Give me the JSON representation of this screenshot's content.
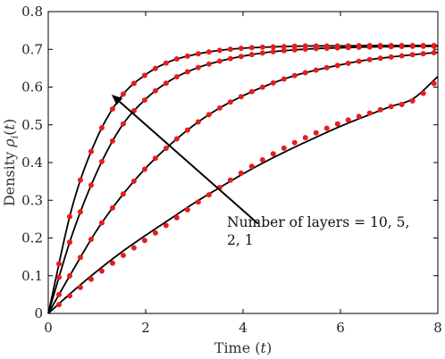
{
  "chart_data": {
    "type": "line",
    "xlabel": "Time (t)",
    "ylabel": "Density ρ_i(t)",
    "ylabel_parts": {
      "text": "Density ",
      "symbol": "ρ",
      "sub": "i",
      "paren_open": "(",
      "var": "t",
      "paren_close": ")"
    },
    "xlabel_parts": {
      "text": "Time ",
      "paren_open": "(",
      "var": "t",
      "paren_close": ")"
    },
    "xlim": [
      0,
      8
    ],
    "ylim": [
      0,
      0.8
    ],
    "x_ticks": [
      0,
      2,
      4,
      6,
      8
    ],
    "x_tick_labels": [
      "0",
      "2",
      "4",
      "6",
      "8"
    ],
    "y_ticks": [
      0,
      0.1,
      0.2,
      0.3,
      0.4,
      0.5,
      0.6,
      0.7,
      0.8
    ],
    "y_tick_labels": [
      "0",
      "0.1",
      "0.2",
      "0.3",
      "0.4",
      "0.5",
      "0.6",
      "0.7",
      "0.8"
    ],
    "grid": false,
    "legend": "none",
    "line_color": "#000000",
    "marker_color": "#e81c1c",
    "series": [
      {
        "x": [
          0,
          0.5,
          1,
          1.5,
          2,
          2.5,
          3,
          3.5,
          4,
          4.5,
          5,
          5.5,
          6,
          6.5,
          7,
          7.5,
          8
        ],
        "y": [
          0,
          0.286,
          0.465,
          0.575,
          0.633,
          0.668,
          0.686,
          0.697,
          0.703,
          0.706,
          0.708,
          0.709,
          0.709,
          0.71,
          0.71,
          0.71,
          0.71
        ]
      },
      {
        "x": [
          0,
          0.5,
          1,
          1.5,
          2,
          2.5,
          3,
          3.5,
          4,
          4.5,
          5,
          5.5,
          6,
          6.5,
          7,
          7.5,
          8
        ],
        "y": [
          0,
          0.212,
          0.375,
          0.495,
          0.568,
          0.617,
          0.648,
          0.668,
          0.682,
          0.692,
          0.698,
          0.702,
          0.704,
          0.706,
          0.707,
          0.708,
          0.708
        ]
      },
      {
        "x": [
          0,
          0.5,
          1,
          1.5,
          2,
          2.5,
          3,
          3.5,
          4,
          4.5,
          5,
          5.5,
          6,
          6.5,
          7,
          7.5,
          8
        ],
        "y": [
          0,
          0.113,
          0.221,
          0.31,
          0.385,
          0.447,
          0.5,
          0.543,
          0.577,
          0.605,
          0.628,
          0.645,
          0.659,
          0.671,
          0.679,
          0.686,
          0.692
        ]
      },
      {
        "x": [
          0,
          0.5,
          1,
          1.5,
          2,
          2.5,
          3,
          3.5,
          4,
          4.5,
          5,
          5.5,
          6,
          6.5,
          7,
          7.5,
          8
        ],
        "y": [
          0,
          0.058,
          0.112,
          0.162,
          0.207,
          0.25,
          0.293,
          0.332,
          0.37,
          0.405,
          0.437,
          0.467,
          0.496,
          0.522,
          0.547,
          0.57,
          0.628
        ]
      }
    ],
    "annotation": {
      "line1": "Number of layers = 10, 5,",
      "line2": "2, 1",
      "arrow_from": [
        4.4,
        0.245
      ],
      "arrow_to": [
        1.3,
        0.58
      ]
    }
  }
}
